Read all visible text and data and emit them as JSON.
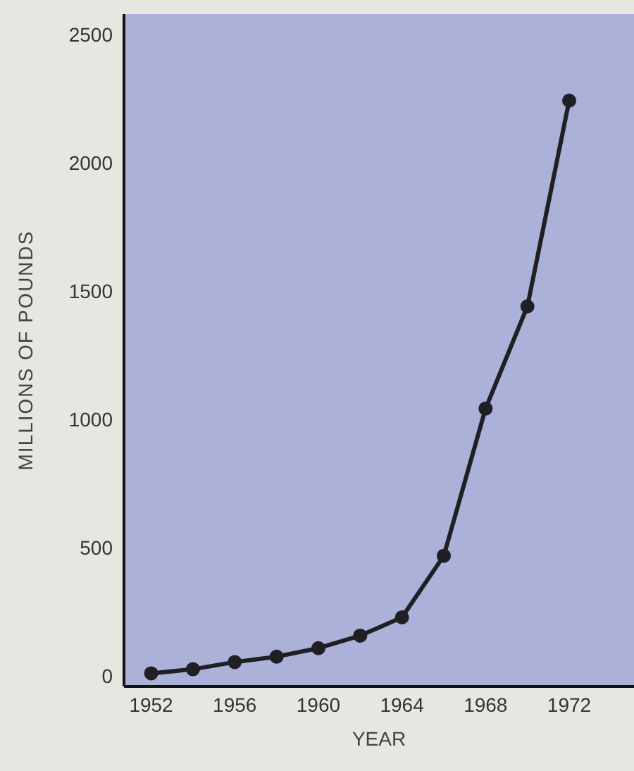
{
  "chart_data": {
    "type": "line",
    "xlabel": "YEAR",
    "ylabel": "MILLIONS OF POUNDS",
    "x": [
      1952,
      1954,
      1956,
      1958,
      1960,
      1962,
      1964,
      1966,
      1968,
      1970,
      1972
    ],
    "series": [
      {
        "color": "#1f1f24",
        "values": [
          11,
          27,
          55,
          76,
          109,
          158,
          229,
          469,
          1043,
          1441,
          2243
        ]
      }
    ],
    "xlim": [
      1950.7,
      1975.1
    ],
    "xticks": [
      1952,
      1956,
      1960,
      1964,
      1968,
      1972
    ],
    "ylim": [
      -40,
      2580
    ],
    "yticks": [
      0,
      500,
      1000,
      1500,
      2000,
      2500
    ],
    "grid": false,
    "marker": "circle",
    "line_style": "solid"
  }
}
